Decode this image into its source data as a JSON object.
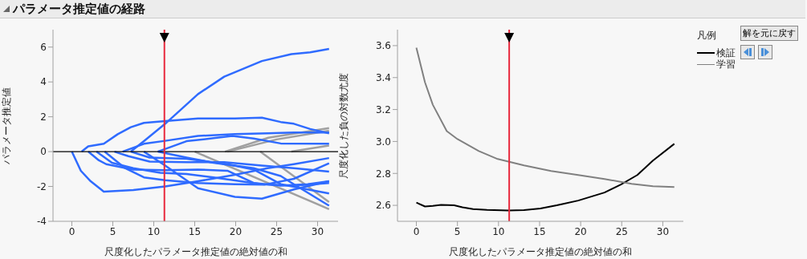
{
  "chart_data": [
    {
      "type": "line",
      "title": "パラメータ推定値の経路",
      "xlabel": "尺度化したパラメータ推定値の絶対値の和",
      "ylabel": "パラメータ推定値",
      "xlim": [
        -2.3,
        32.5
      ],
      "xticks": [
        0,
        5,
        10,
        15,
        20,
        25,
        30
      ],
      "ylim": [
        -4,
        7
      ],
      "yticks": [
        -4,
        -2,
        0,
        2,
        4,
        6
      ],
      "ref_lines": [
        {
          "axis": "y",
          "value": 0,
          "color": "#000000"
        },
        {
          "axis": "x",
          "value": 11.3,
          "color": "#e8283c"
        }
      ],
      "series": [
        {
          "color": "#a0a0a0",
          "x": [
            15,
            31.4
          ],
          "values": [
            0,
            -3.3
          ]
        },
        {
          "color": "#a0a0a0",
          "x": [
            18.7,
            24,
            31.4
          ],
          "values": [
            0,
            0.8,
            1.35
          ]
        },
        {
          "color": "#a0a0a0",
          "x": [
            19,
            25,
            31.4
          ],
          "values": [
            0,
            0.7,
            1.2
          ]
        },
        {
          "color": "#a0a0a0",
          "x": [
            23,
            31.4
          ],
          "values": [
            0,
            -2.9
          ]
        },
        {
          "color": "#a0a0a0",
          "x": [
            26.8,
            31.4
          ],
          "values": [
            0,
            0.35
          ]
        },
        {
          "color": "#2f6bff",
          "x": [
            7.2,
            8.8,
            11.4,
            15.4,
            18.6,
            23.2,
            26.8,
            29.1,
            31.4
          ],
          "values": [
            0,
            0.6,
            1.6,
            3.3,
            4.3,
            5.2,
            5.6,
            5.7,
            5.9
          ]
        },
        {
          "color": "#2f6bff",
          "x": [
            1.2,
            2,
            3.9,
            5.6,
            7.2,
            8.8,
            11.4,
            15.4,
            19.9,
            23.2,
            25.5,
            27.1,
            29.1,
            31.4
          ],
          "values": [
            0,
            0.3,
            0.45,
            1.0,
            1.4,
            1.65,
            1.75,
            1.9,
            1.9,
            1.95,
            1.7,
            1.6,
            1.3,
            1.05
          ]
        },
        {
          "color": "#2f6bff",
          "x": [
            6.2,
            8.8,
            11.4,
            15.4,
            19.9,
            23.9,
            27.1,
            31.4
          ],
          "values": [
            0,
            0.45,
            0.62,
            0.9,
            1.0,
            1.05,
            1.1,
            1.1
          ]
        },
        {
          "color": "#2f6bff",
          "x": [
            10.5,
            14,
            17.3,
            19.6,
            22.2,
            25.5,
            31.4
          ],
          "values": [
            0,
            0.6,
            0.77,
            0.9,
            0.75,
            0.47,
            0.45
          ]
        },
        {
          "color": "#2f6bff",
          "x": [
            0,
            1.1,
            2.3,
            3.9,
            7.5,
            11.4,
            15.4,
            19.9,
            23.9,
            27.1,
            31.4
          ],
          "values": [
            0,
            -1.1,
            -1.7,
            -2.3,
            -2.2,
            -2.0,
            -1.7,
            -1.33,
            -0.95,
            -0.72,
            -0.37
          ]
        },
        {
          "color": "#2f6bff",
          "x": [
            2,
            3.3,
            4.2,
            7.5,
            11.4,
            15.4,
            19,
            22.2,
            25.5,
            28.8,
            31.4
          ],
          "values": [
            0,
            -0.5,
            -0.72,
            -1.03,
            -1.07,
            -1.03,
            -1.1,
            -1.8,
            -1.95,
            -1.87,
            -1.7
          ]
        },
        {
          "color": "#2f6bff",
          "x": [
            3,
            4.9,
            7.5,
            10.8,
            14,
            17.3,
            20.6,
            23.2,
            27.1,
            31.4
          ],
          "values": [
            0,
            -0.64,
            -0.95,
            -1.22,
            -1.28,
            -1.48,
            -1.7,
            -1.87,
            -1.95,
            -1.8
          ]
        },
        {
          "color": "#2f6bff",
          "x": [
            4,
            6.5,
            8.8,
            11.4,
            15.4,
            19.9,
            23.5,
            27.1,
            31.4
          ],
          "values": [
            0,
            -0.95,
            -1.48,
            -1.64,
            -1.8,
            -1.87,
            -1.9,
            -1.56,
            -0.67
          ]
        },
        {
          "color": "#2f6bff",
          "x": [
            5.2,
            6.9,
            9.5,
            14,
            18.6,
            23.2,
            27.1,
            31.4
          ],
          "values": [
            0,
            -0.26,
            -0.57,
            -0.61,
            -0.61,
            -0.8,
            -0.95,
            -1.15
          ]
        },
        {
          "color": "#2f6bff",
          "x": [
            8.8,
            11.4,
            15.4,
            19.9,
            23.2,
            27.1,
            31.4
          ],
          "values": [
            0,
            -0.8,
            -2.1,
            -2.6,
            -2.7,
            -2.17,
            -1.7
          ]
        },
        {
          "color": "#2f6bff",
          "x": [
            10.5,
            14,
            17.3,
            22.2,
            25.5,
            27.1,
            31.4
          ],
          "values": [
            0,
            -0.34,
            -0.64,
            -0.95,
            -1.4,
            -1.87,
            -3.1
          ]
        },
        {
          "color": "#2f6bff",
          "x": [
            7.2,
            9.5,
            14,
            19,
            22.2,
            25.5,
            28.8,
            31.4
          ],
          "values": [
            0,
            -0.34,
            -0.41,
            -0.72,
            -1.03,
            -1.87,
            -2.17,
            -2.4
          ]
        }
      ]
    },
    {
      "type": "line",
      "xlabel": "尺度化したパラメータ推定値の絶対値の和",
      "ylabel": "尺度化した負の対数尤度",
      "xlim": [
        -2.3,
        32.5
      ],
      "xticks": [
        0,
        5,
        10,
        15,
        20,
        25,
        30
      ],
      "ylim": [
        2.5,
        3.7
      ],
      "yticks": [
        2.6,
        2.8,
        {
          "value": 3,
          "label": "3.0"
        },
        3.2,
        3.4,
        3.6
      ],
      "legend": "right",
      "legend_title": "凡例",
      "annotations": [
        "解を元に戻す"
      ],
      "ref_lines": [
        {
          "axis": "x",
          "value": 11.3,
          "color": "#e8283c"
        }
      ],
      "series": [
        {
          "name": "検証",
          "color": "#000000",
          "x": [
            0,
            1.05,
            2,
            3,
            4.6,
            5.6,
            6.9,
            8.6,
            11.2,
            13.1,
            15.1,
            17.1,
            19.7,
            22.9,
            24.9,
            26.9,
            28.8,
            31.4
          ],
          "values": [
            2.617,
            2.593,
            2.597,
            2.603,
            2.6,
            2.588,
            2.577,
            2.572,
            2.568,
            2.57,
            2.58,
            2.6,
            2.63,
            2.68,
            2.73,
            2.79,
            2.88,
            2.985
          ]
        },
        {
          "name": "学習",
          "color": "#808080",
          "x": [
            0,
            1.05,
            2,
            3.7,
            5,
            7.6,
            9.9,
            13.1,
            16.4,
            19.7,
            22.9,
            26.2,
            28.8,
            31.4
          ],
          "values": [
            3.587,
            3.37,
            3.23,
            3.065,
            3.015,
            2.94,
            2.89,
            2.85,
            2.815,
            2.79,
            2.765,
            2.735,
            2.72,
            2.715
          ]
        }
      ]
    }
  ]
}
